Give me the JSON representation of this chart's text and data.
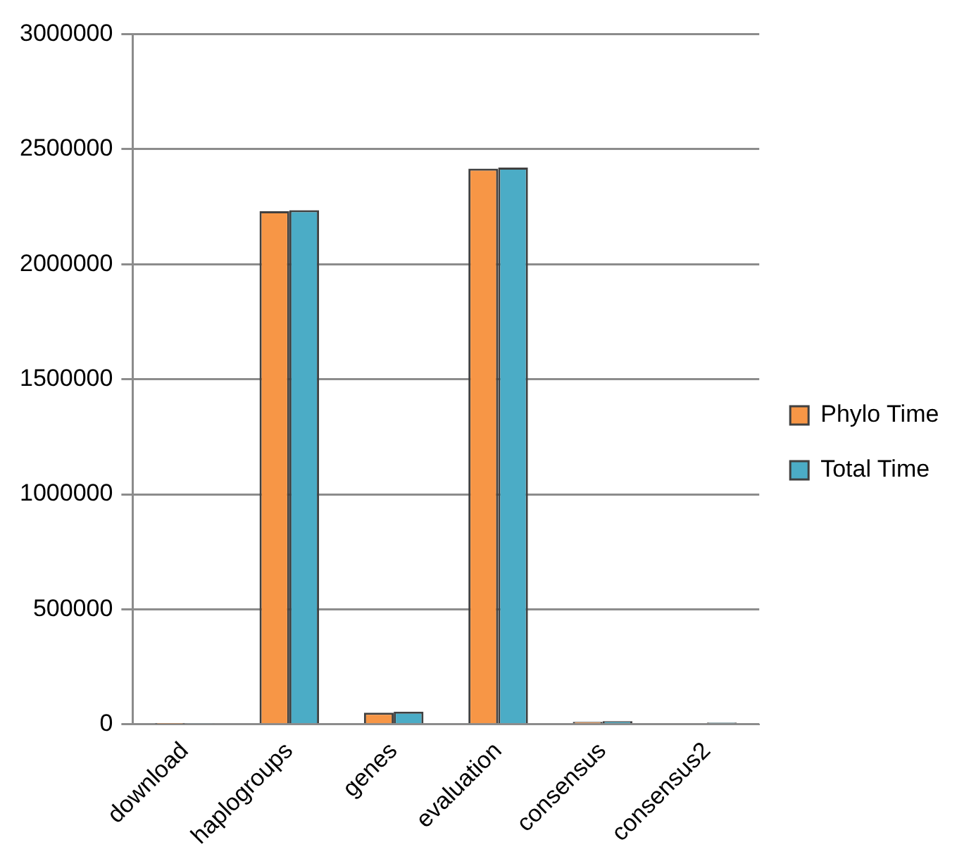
{
  "chart_data": {
    "type": "bar",
    "categories": [
      "download",
      "haplogroups",
      "genes",
      "evaluation",
      "consensus",
      "consensus2"
    ],
    "series": [
      {
        "name": "Phylo Time",
        "color": "#f79646",
        "values": [
          2000,
          2230000,
          51000,
          2415000,
          11000,
          5000
        ]
      },
      {
        "name": "Total Time",
        "color": "#4bacc6",
        "values": [
          4000,
          2235000,
          55000,
          2420000,
          14000,
          8000
        ]
      }
    ],
    "ylim": [
      0,
      3000000
    ],
    "yticks": [
      0,
      500000,
      1000000,
      1500000,
      2000000,
      2500000,
      3000000
    ],
    "grid": "y",
    "legend": "right"
  }
}
